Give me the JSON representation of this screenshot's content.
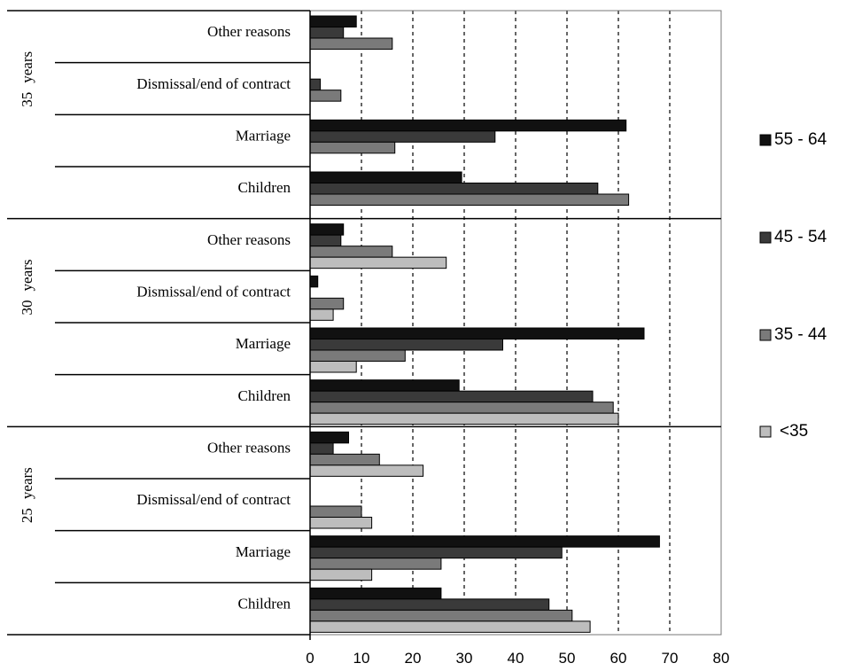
{
  "chart_data": {
    "type": "bar",
    "orientation": "horizontal",
    "title": "",
    "xlabel": "",
    "ylabel": "",
    "xlim": [
      0,
      80
    ],
    "x_ticks": [
      0,
      10,
      20,
      30,
      40,
      50,
      60,
      70,
      80
    ],
    "grid": "vertical dashed",
    "legend_position": "right",
    "series_order": [
      "55 - 64",
      "45 - 54",
      "35 - 44",
      "<35"
    ],
    "series_colors": {
      "55 - 64": "#111111",
      "45 - 54": "#3a3a3a",
      "35 - 44": "#7a7a7a",
      "<35": "#bdbdbd"
    },
    "categories": [
      "Other reasons",
      "Dismissal/end of contract",
      "Marriage",
      "Children"
    ],
    "groups": [
      {
        "label_number": "35",
        "label_word": "years",
        "categories": [
          {
            "name": "Other reasons",
            "values": {
              "55 - 64": 9,
              "45 - 54": 6.5,
              "35 - 44": 16
            }
          },
          {
            "name": "Dismissal/end of contract",
            "values": {
              "45 - 54": 2,
              "35 - 44": 6
            }
          },
          {
            "name": "Marriage",
            "values": {
              "55 - 64": 61.5,
              "45 - 54": 36,
              "35 - 44": 16.5
            }
          },
          {
            "name": "Children",
            "values": {
              "55 - 64": 29.5,
              "45 - 54": 56,
              "35 - 44": 62
            }
          }
        ]
      },
      {
        "label_number": "30",
        "label_word": "years",
        "categories": [
          {
            "name": "Other reasons",
            "values": {
              "55 - 64": 6.5,
              "45 - 54": 6,
              "35 - 44": 16,
              "<35": 26.5
            }
          },
          {
            "name": "Dismissal/end of contract",
            "values": {
              "55 - 64": 1.5,
              "45 - 54": 0,
              "35 - 44": 6.5,
              "<35": 4.5
            }
          },
          {
            "name": "Marriage",
            "values": {
              "55 - 64": 65,
              "45 - 54": 37.5,
              "35 - 44": 18.5,
              "<35": 9
            }
          },
          {
            "name": "Children",
            "values": {
              "55 - 64": 29,
              "45 - 54": 55,
              "35 - 44": 59,
              "<35": 60
            }
          }
        ]
      },
      {
        "label_number": "25",
        "label_word": "years",
        "categories": [
          {
            "name": "Other reasons",
            "values": {
              "55 - 64": 7.5,
              "45 - 54": 4.5,
              "35 - 44": 13.5,
              "<35": 22
            }
          },
          {
            "name": "Dismissal/end of contract",
            "values": {
              "35 - 44": 10,
              "<35": 12
            }
          },
          {
            "name": "Marriage",
            "values": {
              "55 - 64": 68,
              "45 - 54": 49,
              "35 - 44": 25.5,
              "<35": 12
            }
          },
          {
            "name": "Children",
            "values": {
              "55 - 64": 25.5,
              "45 - 54": 46.5,
              "35 - 44": 51,
              "<35": 54.5
            }
          }
        ]
      }
    ]
  }
}
